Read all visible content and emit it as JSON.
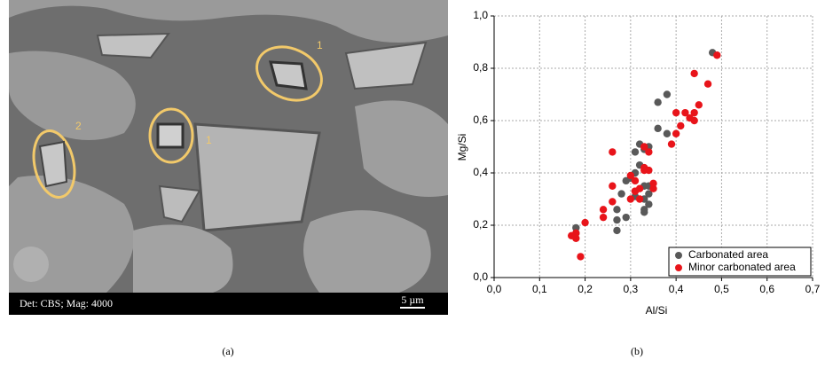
{
  "image_panel": {
    "labels": [
      "1",
      "2",
      "1"
    ],
    "info_bar": "Det: CBS; Mag: 4000",
    "scale_bar": "5 µm",
    "caption": "(a)"
  },
  "chart_data": {
    "type": "scatter",
    "caption": "(b)",
    "x_label": "Al/Si",
    "y_label": "Mg/Si",
    "xlim": [
      0,
      0.7
    ],
    "ylim": [
      0,
      1.0
    ],
    "xticks": [
      {
        "value": 0,
        "label": "0,0"
      },
      {
        "value": 0.1,
        "label": "0,1"
      },
      {
        "value": 0.2,
        "label": "0,2"
      },
      {
        "value": 0.3,
        "label": "0,3"
      },
      {
        "value": 0.4,
        "label": "0,4"
      },
      {
        "value": 0.5,
        "label": "0,5"
      },
      {
        "value": 0.6,
        "label": "0,6"
      },
      {
        "value": 0.7,
        "label": "0,7"
      }
    ],
    "yticks": [
      {
        "value": 0,
        "label": "0,0"
      },
      {
        "value": 0.2,
        "label": "0,2"
      },
      {
        "value": 0.4,
        "label": "0,4"
      },
      {
        "value": 0.6,
        "label": "0,6"
      },
      {
        "value": 0.8,
        "label": "0,8"
      },
      {
        "value": 1.0,
        "label": "1,0"
      }
    ],
    "grid": true,
    "legend": "bottom-right",
    "series": [
      {
        "name": "Carbonated area",
        "color": "#595959",
        "x": [
          0.48,
          0.38,
          0.36,
          0.36,
          0.38,
          0.32,
          0.34,
          0.31,
          0.33,
          0.32,
          0.31,
          0.3,
          0.29,
          0.33,
          0.34,
          0.34,
          0.31,
          0.33,
          0.34,
          0.33,
          0.33,
          0.27,
          0.29,
          0.27,
          0.27,
          0.18,
          0.18,
          0.28
        ],
        "y": [
          0.86,
          0.7,
          0.67,
          0.57,
          0.55,
          0.51,
          0.5,
          0.48,
          0.49,
          0.43,
          0.4,
          0.38,
          0.37,
          0.35,
          0.35,
          0.32,
          0.31,
          0.3,
          0.28,
          0.26,
          0.25,
          0.26,
          0.23,
          0.22,
          0.18,
          0.19,
          0.17,
          0.32
        ]
      },
      {
        "name": "Minor carbonated area",
        "color": "#e8141a",
        "x": [
          0.49,
          0.44,
          0.47,
          0.45,
          0.4,
          0.42,
          0.44,
          0.43,
          0.44,
          0.41,
          0.4,
          0.39,
          0.33,
          0.34,
          0.26,
          0.33,
          0.34,
          0.33,
          0.3,
          0.31,
          0.35,
          0.32,
          0.31,
          0.26,
          0.35,
          0.32,
          0.3,
          0.26,
          0.31,
          0.24,
          0.24,
          0.2,
          0.18,
          0.17,
          0.18,
          0.19
        ],
        "y": [
          0.85,
          0.78,
          0.74,
          0.66,
          0.63,
          0.63,
          0.63,
          0.61,
          0.6,
          0.58,
          0.55,
          0.51,
          0.5,
          0.48,
          0.48,
          0.42,
          0.41,
          0.41,
          0.39,
          0.37,
          0.36,
          0.34,
          0.33,
          0.35,
          0.34,
          0.3,
          0.3,
          0.29,
          0.33,
          0.26,
          0.23,
          0.21,
          0.17,
          0.16,
          0.15,
          0.08
        ]
      }
    ]
  }
}
